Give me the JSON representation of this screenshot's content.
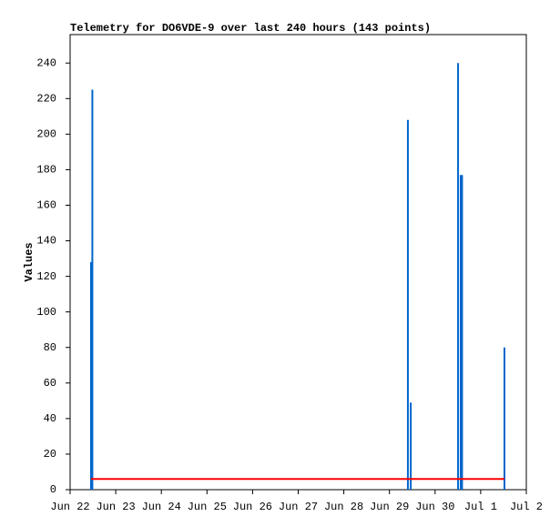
{
  "chart_data": {
    "type": "bar",
    "title": "Telemetry for DO6VDE-9 over last 240 hours (143 points)",
    "y_label": "Values",
    "xlim": [
      0,
      240
    ],
    "xticks": [
      {
        "value": 0,
        "label": "Jun 22"
      },
      {
        "value": 24,
        "label": "Jun 23"
      },
      {
        "value": 48,
        "label": "Jun 24"
      },
      {
        "value": 72,
        "label": "Jun 25"
      },
      {
        "value": 96,
        "label": "Jun 26"
      },
      {
        "value": 120,
        "label": "Jun 27"
      },
      {
        "value": 144,
        "label": "Jun 28"
      },
      {
        "value": 168,
        "label": "Jun 29"
      },
      {
        "value": 192,
        "label": "Jun 30"
      },
      {
        "value": 216,
        "label": "Jul 1"
      },
      {
        "value": 240,
        "label": "Jul 2"
      }
    ],
    "ylim": [
      0,
      256
    ],
    "yticks": [
      0,
      20,
      40,
      60,
      80,
      100,
      120,
      140,
      160,
      180,
      200,
      220,
      240
    ],
    "series": [
      {
        "type": "bar",
        "color": "#0066cc",
        "x": [
          11.0,
          11.7,
          177.7,
          179.2,
          204.1,
          205.5,
          206.2,
          228.5
        ],
        "values": [
          128,
          225,
          208,
          49,
          240,
          177,
          177,
          80
        ]
      },
      {
        "type": "line",
        "color": "#ff0000",
        "x": [
          11.0,
          228.5
        ],
        "values": [
          6,
          6
        ]
      }
    ]
  }
}
